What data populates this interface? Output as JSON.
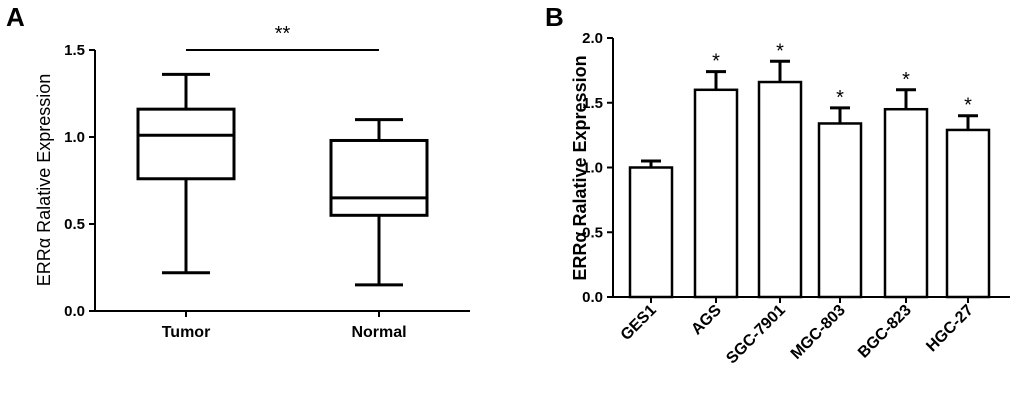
{
  "chart_data": [
    {
      "panel": "A",
      "type": "box",
      "ylabel": "ERRα Ralative Expression",
      "xlabel": "",
      "ylim": [
        0,
        1.5
      ],
      "yticks": [
        "0.0",
        "0.5",
        "1.0",
        "1.5"
      ],
      "categories": [
        "Tumor",
        "Normal"
      ],
      "boxes": [
        {
          "name": "Tumor",
          "min": 0.22,
          "q1": 0.76,
          "median": 1.01,
          "q3": 1.16,
          "max": 1.36
        },
        {
          "name": "Normal",
          "min": 0.15,
          "q1": 0.55,
          "median": 0.65,
          "q3": 0.98,
          "max": 1.1
        }
      ],
      "significance": "**"
    },
    {
      "panel": "B",
      "type": "bar",
      "ylabel": "ERRα Ralative Expression",
      "xlabel": "",
      "ylim": [
        0,
        2.0
      ],
      "yticks": [
        "0.0",
        "0.5",
        "1.0",
        "1.5",
        "2.0"
      ],
      "categories": [
        "GES1",
        "AGS",
        "SGC-7901",
        "MGC-803",
        "BGC-823",
        "HGC-27"
      ],
      "values": [
        1.0,
        1.6,
        1.66,
        1.34,
        1.45,
        1.29
      ],
      "errors": [
        0.05,
        0.14,
        0.16,
        0.12,
        0.15,
        0.11
      ],
      "annotations": [
        "",
        "*",
        "*",
        "*",
        "*",
        "*"
      ]
    }
  ]
}
